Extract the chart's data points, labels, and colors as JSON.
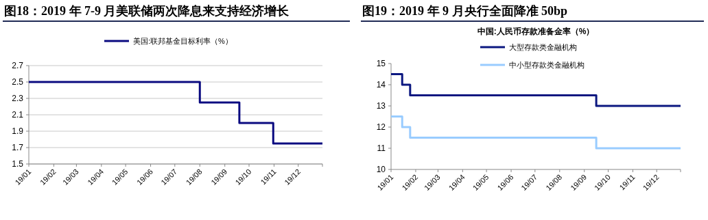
{
  "chart_data": [
    {
      "type": "step",
      "title": "图18：2019 年 7-9 月美联储两次降息来支持经济增长",
      "x": [
        "2019-01-01",
        "2019-08-01",
        "2019-09-19",
        "2019-10-31",
        "2019-12-31"
      ],
      "series": [
        {
          "name": "美国:联邦基金目标利率（%）",
          "color": "#0a0a80",
          "values": [
            2.5,
            2.25,
            2.0,
            1.75,
            1.75
          ]
        }
      ],
      "xlim": [
        "2019-01-01",
        "2019-12-31"
      ],
      "xticks": [
        {
          "value": "2019-01",
          "label": "19/01"
        },
        {
          "value": "2019-02",
          "label": "19/02"
        },
        {
          "value": "2019-03",
          "label": "19/03"
        },
        {
          "value": "2019-04",
          "label": "19/04"
        },
        {
          "value": "2019-05",
          "label": "19/05"
        },
        {
          "value": "2019-06",
          "label": "19/06"
        },
        {
          "value": "2019-07",
          "label": "19/07"
        },
        {
          "value": "2019-08",
          "label": "19/08"
        },
        {
          "value": "2019-09",
          "label": "19/09"
        },
        {
          "value": "2019-10",
          "label": "19/10"
        },
        {
          "value": "2019-11",
          "label": "19/11"
        },
        {
          "value": "2019-12",
          "label": "19/12"
        }
      ],
      "ylim": [
        1.5,
        2.7
      ],
      "yticks": [
        1.5,
        1.7,
        1.9,
        2.1,
        2.3,
        2.5,
        2.7
      ],
      "grid": "y",
      "legend": "top"
    },
    {
      "type": "step",
      "title": "图19：2019 年 9 月央行全面降准 50bp",
      "subtitle": "中国:人民币存款准备金率（%）",
      "x": [
        "2019-01-01",
        "2019-01-15",
        "2019-01-25",
        "2019-09-16",
        "2019-12-31"
      ],
      "series": [
        {
          "name": "大型存款类金融机构",
          "color": "#0b1780",
          "values": [
            14.5,
            14.0,
            13.5,
            13.0,
            13.0
          ]
        },
        {
          "name": "中小型存款类金融机构",
          "color": "#99ccff",
          "values": [
            12.5,
            12.0,
            11.5,
            11.0,
            11.0
          ]
        }
      ],
      "xlim": [
        "2019-01-01",
        "2019-12-31"
      ],
      "xticks": [
        {
          "value": "2019-01",
          "label": "19/01"
        },
        {
          "value": "2019-02",
          "label": "19/02"
        },
        {
          "value": "2019-03",
          "label": "19/03"
        },
        {
          "value": "2019-04",
          "label": "19/04"
        },
        {
          "value": "2019-05",
          "label": "19/05"
        },
        {
          "value": "2019-06",
          "label": "19/06"
        },
        {
          "value": "2019-07",
          "label": "19/07"
        },
        {
          "value": "2019-08",
          "label": "19/08"
        },
        {
          "value": "2019-09",
          "label": "19/09"
        },
        {
          "value": "2019-10",
          "label": "19/10"
        },
        {
          "value": "2019-11",
          "label": "19/11"
        },
        {
          "value": "2019-12",
          "label": "19/12"
        }
      ],
      "ylim": [
        10,
        15
      ],
      "yticks": [
        10,
        11,
        12,
        13,
        14,
        15
      ],
      "grid": false,
      "legend": "top"
    }
  ]
}
